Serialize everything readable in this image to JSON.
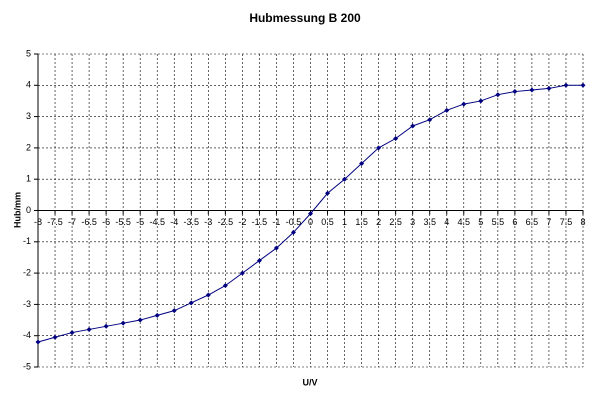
{
  "chart_data": {
    "type": "line",
    "title": "Hubmessung B 200",
    "x_label": "U/V",
    "y_label": "Hub/mm",
    "x": [
      -8,
      -7.5,
      -7,
      -6.5,
      -6,
      -5.5,
      -5,
      -4.5,
      -4,
      -3.5,
      -3,
      -2.5,
      -2,
      -1.5,
      -1,
      -0.5,
      0,
      0.5,
      1,
      1.5,
      2,
      2.5,
      3,
      3.5,
      4,
      4.5,
      5,
      5.5,
      6,
      6.5,
      7,
      7.5,
      8
    ],
    "series": [
      {
        "name": "Hub",
        "color": "#000080",
        "values": [
          -4.2,
          -4.05,
          -3.9,
          -3.8,
          -3.7,
          -3.6,
          -3.5,
          -3.35,
          -3.2,
          -2.95,
          -2.7,
          -2.4,
          -2.0,
          -1.6,
          -1.2,
          -0.7,
          -0.1,
          0.55,
          1.0,
          1.5,
          2.0,
          2.3,
          2.7,
          2.9,
          3.2,
          3.4,
          3.5,
          3.7,
          3.8,
          3.85,
          3.9,
          4.0,
          4.0
        ]
      }
    ],
    "xlim": [
      -8,
      8
    ],
    "xticks": [
      -8,
      -7.5,
      -7,
      -6.5,
      -6,
      -5.5,
      -5,
      -4.5,
      -4,
      -3.5,
      -3,
      -2.5,
      -2,
      -1.5,
      -1,
      -0.5,
      0,
      0.5,
      1,
      1.5,
      2,
      2.5,
      3,
      3.5,
      4,
      4.5,
      5,
      5.5,
      6,
      6.5,
      7,
      7.5,
      8
    ],
    "ylim": [
      -5,
      5
    ],
    "yticks": [
      -5,
      -4,
      -3,
      -2,
      -1,
      0,
      1,
      2,
      3,
      4,
      5
    ],
    "grid": true
  }
}
